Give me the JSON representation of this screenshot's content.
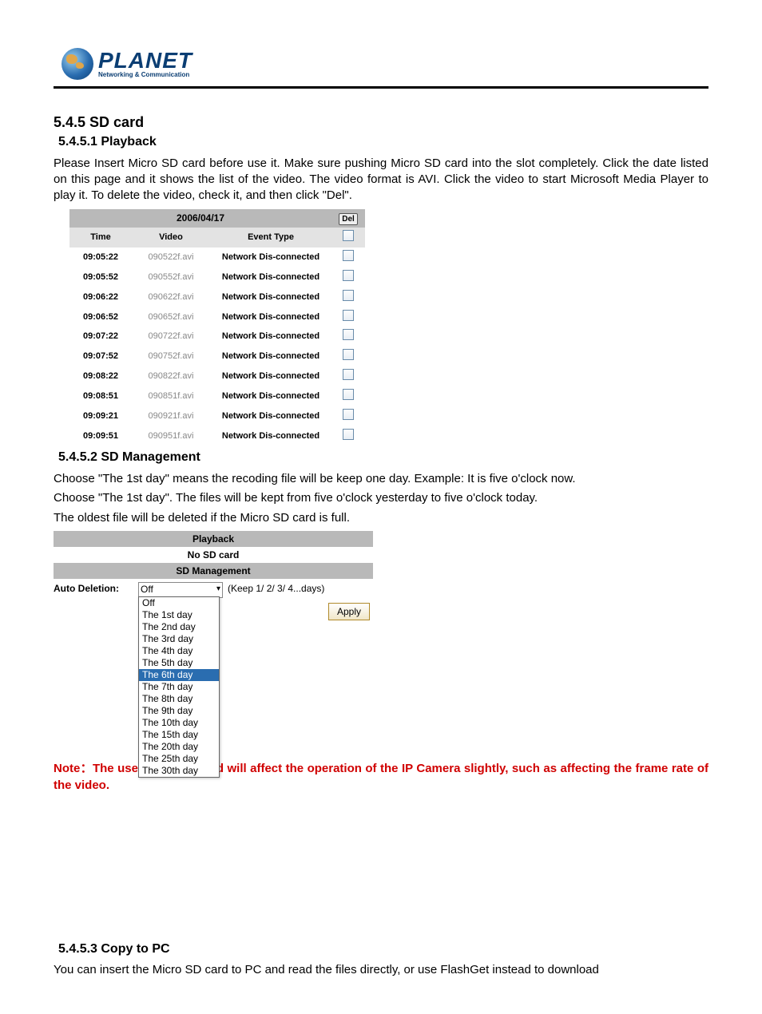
{
  "logo": {
    "main": "PLANET",
    "sub": "Networking & Communication"
  },
  "h_545": "5.4.5 SD card",
  "h_5451": "5.4.5.1 Playback",
  "p_playback": "Please Insert Micro SD card before use it. Make sure pushing Micro SD card into the slot completely. Click the date listed on this page and it shows the list of the video. The video format is AVI. Click the video to start Microsoft Media Player to play it. To delete the video, check it, and then click \"Del\".",
  "playback": {
    "date": "2006/04/17",
    "del_label": "Del",
    "headers": {
      "time": "Time",
      "video": "Video",
      "event": "Event Type"
    },
    "rows": [
      {
        "time": "09:05:22",
        "video": "090522f.avi",
        "event": "Network Dis-connected"
      },
      {
        "time": "09:05:52",
        "video": "090552f.avi",
        "event": "Network Dis-connected"
      },
      {
        "time": "09:06:22",
        "video": "090622f.avi",
        "event": "Network Dis-connected"
      },
      {
        "time": "09:06:52",
        "video": "090652f.avi",
        "event": "Network Dis-connected"
      },
      {
        "time": "09:07:22",
        "video": "090722f.avi",
        "event": "Network Dis-connected"
      },
      {
        "time": "09:07:52",
        "video": "090752f.avi",
        "event": "Network Dis-connected"
      },
      {
        "time": "09:08:22",
        "video": "090822f.avi",
        "event": "Network Dis-connected"
      },
      {
        "time": "09:08:51",
        "video": "090851f.avi",
        "event": "Network Dis-connected"
      },
      {
        "time": "09:09:21",
        "video": "090921f.avi",
        "event": "Network Dis-connected"
      },
      {
        "time": "09:09:51",
        "video": "090951f.avi",
        "event": "Network Dis-connected"
      }
    ]
  },
  "h_5452": "5.4.5.2 SD Management",
  "p_sd1": "Choose \"The 1st day\" means the recoding file will be keep one day. Example: It is five o'clock now.",
  "p_sd2": "Choose \"The 1st day\". The files will be kept from five o'clock yesterday to five o'clock today.",
  "p_sd3": "The oldest file will be deleted if the Micro SD card is full.",
  "sd": {
    "bar_playback": "Playback",
    "no_card": "No SD card",
    "bar_mgmt": "SD Management",
    "auto_del_label": "Auto Deletion:",
    "selected": "Off",
    "keep_hint": "(Keep 1/ 2/ 3/ 4...days)",
    "apply": "Apply",
    "options": [
      "Off",
      "The 1st day",
      "The 2nd day",
      "The 3rd day",
      "The 4th day",
      "The 5th day",
      "The 6th day",
      "The 7th day",
      "The 8th day",
      "The 9th day",
      "The 10th day",
      "The 15th day",
      "The 20th day",
      "The 25th day",
      "The 30th day"
    ],
    "highlight_index": 6
  },
  "note": "Note：The use of the SD card will affect the operation of the IP Camera slightly, such as affecting the frame rate of the video.",
  "h_5453": "5.4.5.3 Copy to PC",
  "p_copy": "You can insert the Micro SD card to PC and read the files directly, or use FlashGet instead to download"
}
